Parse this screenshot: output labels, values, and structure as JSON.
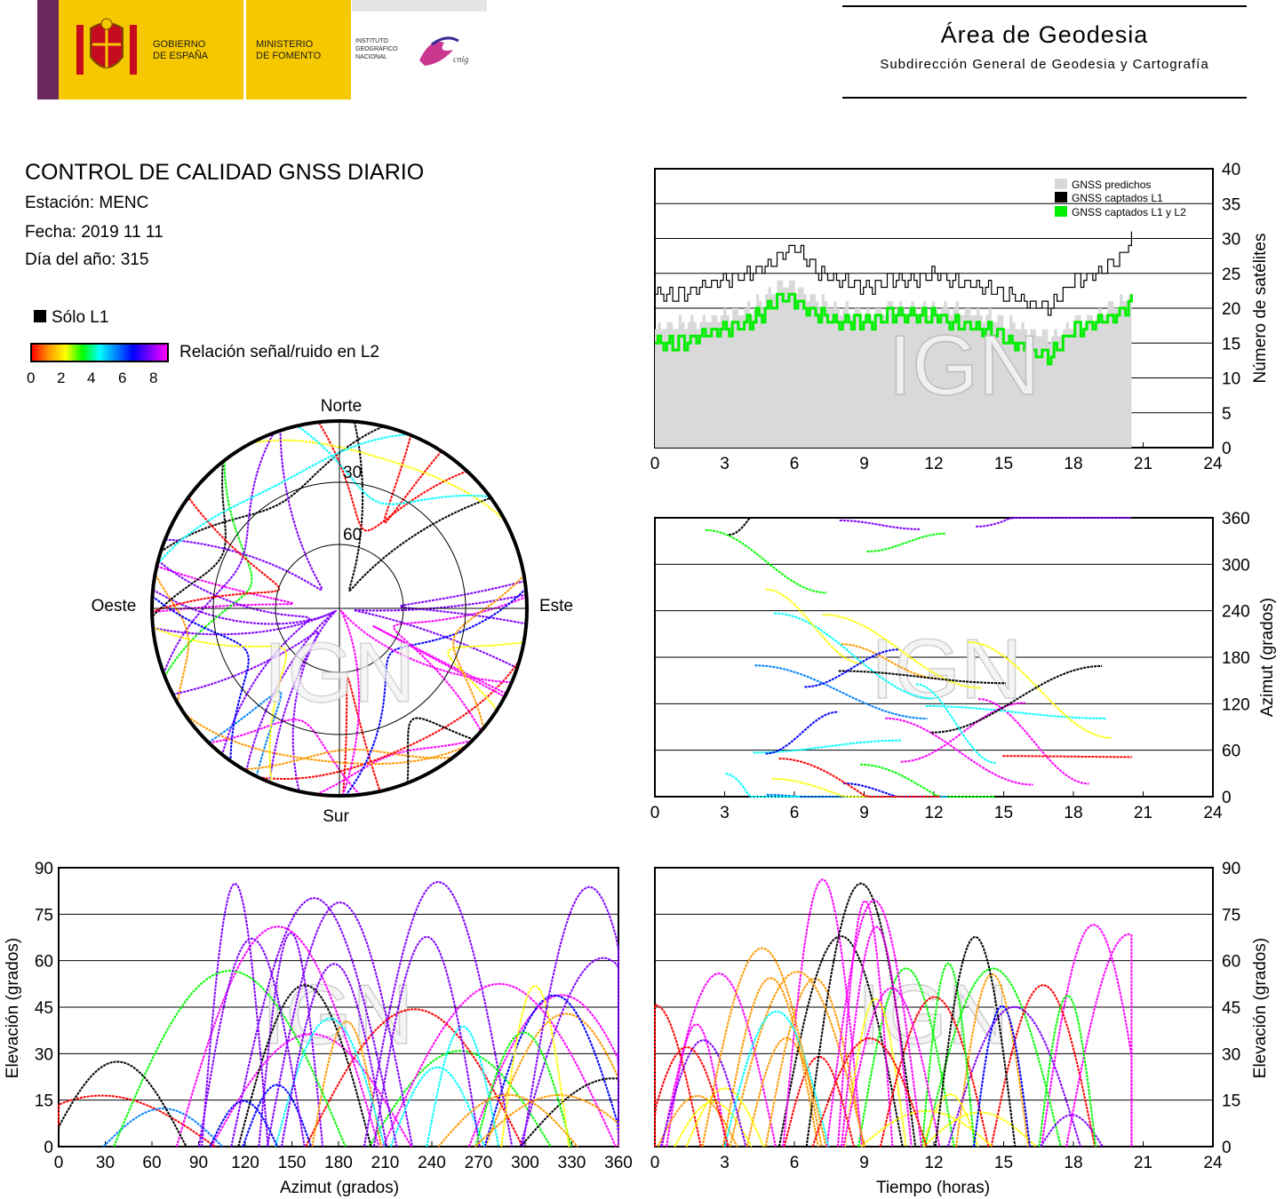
{
  "header": {
    "gov_line1": "GOBIERNO",
    "gov_line2": "DE ESPAÑA",
    "ministry_line1": "MINISTERIO",
    "ministry_line2": "DE FOMENTO",
    "ign_line1": "INSTITUTO",
    "ign_line2": "GEOGRÁFICO",
    "ign_line3": "NACIONAL",
    "cnig": "cnig",
    "area_title": "Área de Geodesia",
    "area_subtitle": "Subdirección General de Geodesia y Cartografía"
  },
  "report": {
    "title": "CONTROL DE CALIDAD GNSS DIARIO",
    "station": "Estación: MENC",
    "date": "Fecha: 2019 11 11",
    "doy": "Día del año: 315"
  },
  "legend": {
    "l1_only": "Sólo L1",
    "snr_label": "Relación señal/ruido en L2",
    "snr_ticks": [
      "0",
      "2",
      "4",
      "6",
      "8"
    ]
  },
  "watermark": "IGN",
  "colors": {
    "predicted": "#d9d9d9",
    "l1": "#000000",
    "l1l2": "#00ee00",
    "snr_scale": [
      "#ff0000",
      "#ff9900",
      "#ffff00",
      "#00ff00",
      "#00ffff",
      "#0080ff",
      "#0000ff",
      "#8000ff",
      "#ff00ff"
    ]
  },
  "chart_data": [
    {
      "id": "satellite-count",
      "type": "area",
      "ylabel": "Número de satélites",
      "xlim": [
        0,
        24
      ],
      "ylim": [
        0,
        40
      ],
      "x_ticks": [
        "0",
        "3",
        "6",
        "9",
        "12",
        "15",
        "18",
        "21",
        "24"
      ],
      "y_ticks": [
        "0",
        "5",
        "10",
        "15",
        "20",
        "25",
        "30",
        "35",
        "40"
      ],
      "legend_position": "top-right",
      "x": [
        0,
        1,
        2,
        3,
        4,
        5,
        5.5,
        6,
        7,
        8,
        9,
        10,
        11,
        12,
        13,
        14,
        15,
        16,
        17,
        18,
        19,
        20,
        20.5
      ],
      "series": [
        {
          "name": "GNSS predichos",
          "values": [
            17,
            18,
            18,
            19,
            20,
            22,
            24,
            23,
            21,
            20,
            19,
            20,
            20,
            20,
            20,
            19,
            18,
            17,
            16,
            18,
            19,
            21,
            22
          ]
        },
        {
          "name": "GNSS captados L1",
          "values": [
            22,
            22,
            23,
            24,
            25,
            26,
            28,
            29,
            25,
            24,
            23,
            24,
            24,
            25,
            24,
            23,
            22,
            21,
            20,
            24,
            25,
            27,
            30
          ]
        },
        {
          "name": "GNSS captados L1 y L2",
          "values": [
            15,
            15,
            16,
            17,
            18,
            20,
            22,
            21,
            19,
            18,
            18,
            19,
            19,
            19,
            18,
            17,
            16,
            14,
            13,
            17,
            18,
            19,
            21
          ]
        }
      ]
    },
    {
      "id": "azimuth-time",
      "type": "scatter",
      "ylabel": "Azimut (grados)",
      "xlim": [
        0,
        24
      ],
      "ylim": [
        0,
        360
      ],
      "x_ticks": [
        "0",
        "3",
        "6",
        "9",
        "12",
        "15",
        "18",
        "21",
        "24"
      ],
      "y_ticks": [
        "0",
        "60",
        "120",
        "180",
        "240",
        "300",
        "360"
      ]
    },
    {
      "id": "elevation-azimuth",
      "type": "scatter",
      "xlabel": "Azimut (grados)",
      "ylabel": "Elevación (grados)",
      "xlim": [
        0,
        360
      ],
      "ylim": [
        0,
        90
      ],
      "x_ticks": [
        "0",
        "30",
        "60",
        "90",
        "120",
        "150",
        "180",
        "210",
        "240",
        "270",
        "300",
        "330",
        "360"
      ],
      "y_ticks": [
        "0",
        "15",
        "30",
        "45",
        "60",
        "75",
        "90"
      ]
    },
    {
      "id": "elevation-time",
      "type": "scatter",
      "xlabel": "Tiempo (horas)",
      "ylabel": "Elevación (grados)",
      "xlim": [
        0,
        24
      ],
      "ylim": [
        0,
        90
      ],
      "x_ticks": [
        "0",
        "3",
        "6",
        "9",
        "12",
        "15",
        "18",
        "21",
        "24"
      ],
      "y_ticks": [
        "0",
        "15",
        "30",
        "45",
        "60",
        "75",
        "90"
      ]
    },
    {
      "id": "skyplot",
      "type": "scatter",
      "directions": {
        "north": "Norte",
        "south": "Sur",
        "east": "Este",
        "west": "Oeste"
      },
      "ring_labels": [
        "30",
        "60"
      ]
    }
  ]
}
